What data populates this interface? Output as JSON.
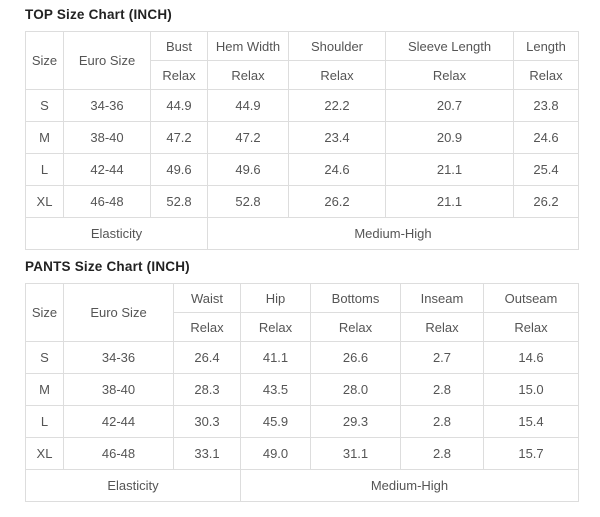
{
  "tables": [
    {
      "title": "TOP Size Chart (INCH)",
      "columns": {
        "size": "Size",
        "euro": "Euro Size",
        "measures": [
          "Bust",
          "Hem Width",
          "Shoulder",
          "Sleeve Length",
          "Length"
        ]
      },
      "relax_labels": [
        "Relax",
        "Relax",
        "Relax",
        "Relax",
        "Relax"
      ],
      "rows": [
        {
          "size": "S",
          "euro": "34-36",
          "values": [
            "44.9",
            "44.9",
            "22.2",
            "20.7",
            "23.8"
          ]
        },
        {
          "size": "M",
          "euro": "38-40",
          "values": [
            "47.2",
            "47.2",
            "23.4",
            "20.9",
            "24.6"
          ]
        },
        {
          "size": "L",
          "euro": "42-44",
          "values": [
            "49.6",
            "49.6",
            "24.6",
            "21.1",
            "25.4"
          ]
        },
        {
          "size": "XL",
          "euro": "46-48",
          "values": [
            "52.8",
            "52.8",
            "26.2",
            "21.1",
            "26.2"
          ]
        }
      ],
      "footer": {
        "label": "Elasticity",
        "value": "Medium-High"
      }
    },
    {
      "title": "PANTS Size Chart (INCH)",
      "columns": {
        "size": "Size",
        "euro": "Euro Size",
        "measures": [
          "Waist",
          "Hip",
          "Bottoms",
          "Inseam",
          "Outseam"
        ]
      },
      "relax_labels": [
        "Relax",
        "Relax",
        "Relax",
        "Relax",
        "Relax"
      ],
      "rows": [
        {
          "size": "S",
          "euro": "34-36",
          "values": [
            "26.4",
            "41.1",
            "26.6",
            "2.7",
            "14.6"
          ]
        },
        {
          "size": "M",
          "euro": "38-40",
          "values": [
            "28.3",
            "43.5",
            "28.0",
            "2.8",
            "15.0"
          ]
        },
        {
          "size": "L",
          "euro": "42-44",
          "values": [
            "30.3",
            "45.9",
            "29.3",
            "2.8",
            "15.4"
          ]
        },
        {
          "size": "XL",
          "euro": "46-48",
          "values": [
            "33.1",
            "49.0",
            "31.1",
            "2.8",
            "15.7"
          ]
        }
      ],
      "footer": {
        "label": "Elasticity",
        "value": "Medium-High"
      }
    }
  ],
  "colors": {
    "euro_cell_bg": "#454545",
    "euro_cell_text": "#ffffff",
    "header_bg": "#f5f5f5",
    "border": "#dddddd",
    "body_text": "#555555",
    "header_text": "#333333",
    "title_text": "#222222"
  }
}
